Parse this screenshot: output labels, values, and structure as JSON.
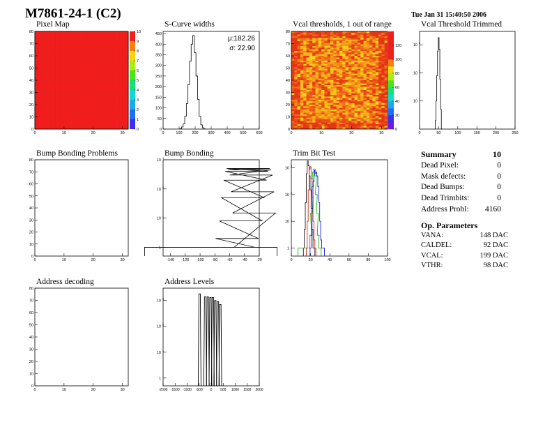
{
  "header": {
    "title": "M7861-24-1 (C2)",
    "date": "Tue Jan 31 15:40:50 2006"
  },
  "chart_data": [
    {
      "id": "pixel_map",
      "type": "heatmap",
      "title": "Pixel Map",
      "xlim": [
        0,
        32
      ],
      "ylim": [
        0,
        80
      ],
      "zlim": [
        0,
        10
      ],
      "xticks": [
        0,
        10,
        20,
        30
      ],
      "yticks": [
        0,
        10,
        20,
        30,
        40,
        50,
        60,
        70,
        80
      ],
      "zticks": [
        0,
        1,
        2,
        3,
        4,
        5,
        6,
        7,
        8,
        9,
        10
      ],
      "value_all_pixels": 10,
      "color": "#f21d1d"
    },
    {
      "id": "scurve_widths",
      "type": "line",
      "title": "S-Curve widths",
      "xlim": [
        0,
        600
      ],
      "ylim": [
        0,
        460
      ],
      "xticks": [
        0,
        100,
        200,
        300,
        400,
        500,
        600
      ],
      "yticks": [
        0,
        50,
        100,
        150,
        200,
        250,
        300,
        350,
        400,
        450
      ],
      "x": [
        110,
        120,
        130,
        140,
        150,
        160,
        170,
        180,
        190,
        200,
        210,
        220,
        230,
        240,
        250,
        260
      ],
      "y": [
        2,
        10,
        25,
        60,
        120,
        210,
        320,
        400,
        440,
        360,
        250,
        140,
        60,
        20,
        6,
        1
      ],
      "stats": {
        "mean_label": "μ:182.26",
        "sigma_label": "σ: 22.90"
      }
    },
    {
      "id": "vcal_thresholds",
      "type": "heatmap",
      "title": "Vcal thresholds, 1 out of range",
      "xlim": [
        0,
        32
      ],
      "ylim": [
        0,
        80
      ],
      "zlim": [
        0,
        140
      ],
      "xticks": [
        0,
        10,
        20,
        30
      ],
      "yticks": [
        0,
        10,
        20,
        30,
        40,
        50,
        60,
        70,
        80
      ],
      "zticks": [
        0,
        20,
        40,
        60,
        80,
        100,
        120
      ]
    },
    {
      "id": "vcal_threshold_trimmed",
      "type": "line",
      "title": "Vcal Threshold Trimmed",
      "xlim": [
        0,
        250
      ],
      "ylog": true,
      "ylim": [
        1,
        3000
      ],
      "xticks": [
        0,
        50,
        100,
        150,
        200,
        250
      ],
      "yticks": [
        10,
        100,
        1000
      ],
      "x": [
        40,
        42,
        44,
        46,
        48,
        50,
        52,
        54,
        56,
        58,
        60
      ],
      "y": [
        1,
        2,
        10,
        80,
        600,
        1800,
        700,
        60,
        5,
        1,
        1
      ]
    },
    {
      "id": "bump_bonding_problems",
      "type": "heatmap",
      "title": "Bump Bonding Problems",
      "xlim": [
        0,
        32
      ],
      "ylim": [
        0,
        80
      ],
      "xticks": [
        0,
        10,
        20,
        30
      ],
      "yticks": [
        0,
        10,
        20,
        30,
        40,
        50,
        60,
        70,
        80
      ]
    },
    {
      "id": "bump_bonding",
      "type": "line",
      "title": "Bump Bonding",
      "xlim": [
        -150,
        -20
      ],
      "ylog": true,
      "ylim": [
        0.5,
        1000
      ],
      "xticks": [
        -140,
        -120,
        -100,
        -80,
        -60,
        -40,
        -20
      ],
      "yticks": [
        1,
        10,
        100,
        1000
      ],
      "x": [
        -146,
        -88,
        -55,
        -50,
        -45,
        -42,
        -39,
        -37,
        -35,
        -33,
        -31,
        -29,
        -27,
        -25
      ],
      "y": [
        1,
        1,
        1,
        2,
        8,
        50,
        200,
        400,
        500,
        450,
        300,
        80,
        15,
        1
      ]
    },
    {
      "id": "trim_bit_test",
      "type": "line",
      "title": "Trim Bit Test",
      "xlim": [
        0,
        100
      ],
      "ylog": true,
      "ylim": [
        0.5,
        2000
      ],
      "xticks": [
        0,
        20,
        40,
        60,
        80,
        100
      ],
      "yticks": [
        1,
        10,
        100,
        1000
      ],
      "series": [
        {
          "color": "#000000",
          "x": [
            13,
            14,
            15,
            16,
            17,
            18,
            19,
            20,
            21,
            22,
            23,
            24
          ],
          "y": [
            1,
            5,
            50,
            600,
            1800,
            1200,
            500,
            150,
            30,
            5,
            1,
            1
          ]
        },
        {
          "color": "#dd0000",
          "x": [
            16,
            17,
            18,
            19,
            20,
            21,
            22,
            23,
            24,
            25
          ],
          "y": [
            1,
            10,
            150,
            900,
            1100,
            400,
            80,
            10,
            2,
            1
          ]
        },
        {
          "color": "#00aa00",
          "x": [
            8,
            10,
            12,
            14,
            18,
            20,
            21,
            22,
            23,
            24,
            25,
            26,
            27,
            28,
            29,
            30
          ],
          "y": [
            1,
            1,
            1,
            1,
            1,
            3,
            20,
            200,
            700,
            900,
            500,
            100,
            20,
            3,
            1,
            1
          ]
        },
        {
          "color": "#0000dd",
          "x": [
            20,
            21,
            22,
            23,
            24,
            25,
            26,
            27,
            28,
            29,
            30,
            31,
            32,
            33,
            34
          ],
          "y": [
            1,
            3,
            30,
            300,
            800,
            600,
            700,
            500,
            200,
            50,
            10,
            2,
            1,
            1,
            1
          ]
        }
      ]
    },
    {
      "id": "address_decoding",
      "type": "heatmap",
      "title": "Address decoding",
      "xlim": [
        0,
        32
      ],
      "ylim": [
        0,
        80
      ],
      "xticks": [
        0,
        10,
        20,
        30
      ],
      "yticks": [
        0,
        10,
        20,
        30,
        40,
        50,
        60,
        70,
        80
      ]
    },
    {
      "id": "address_levels",
      "type": "line",
      "title": "Address Levels",
      "xlim": [
        -2000,
        2000
      ],
      "ylog": true,
      "ylim": [
        0.5,
        3000
      ],
      "xticks": [
        -2000,
        -1500,
        -1000,
        -500,
        0,
        500,
        1000,
        1500,
        2000
      ],
      "x": [
        -480,
        -250,
        -140,
        -30,
        70,
        170,
        280,
        380
      ],
      "y": [
        1800,
        1400,
        1400,
        1300,
        1300,
        1000,
        900,
        700
      ]
    }
  ],
  "summary": {
    "title": "Summary",
    "total": "10",
    "rows": [
      {
        "label": "Dead Pixel:",
        "value": "0"
      },
      {
        "label": "Mask defects:",
        "value": "0"
      },
      {
        "label": "Dead Bumps:",
        "value": "0"
      },
      {
        "label": "Dead Trimbits:",
        "value": "0"
      },
      {
        "label": "Address Probl:",
        "value": "4160"
      }
    ]
  },
  "op_parameters": {
    "title": "Op. Parameters",
    "rows": [
      {
        "label": "VANA:",
        "value": "148 DAC"
      },
      {
        "label": "CALDEL:",
        "value": "92 DAC"
      },
      {
        "label": "VCAL:",
        "value": "199 DAC"
      },
      {
        "label": "VTHR:",
        "value": "98 DAC"
      }
    ]
  }
}
